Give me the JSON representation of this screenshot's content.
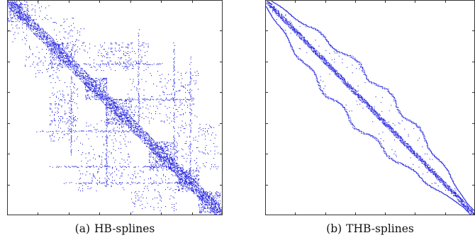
{
  "figure": {
    "panels": [
      {
        "tag": "(a)",
        "caption": "HB-splines"
      },
      {
        "tag": "(b)",
        "caption": "THB-splines"
      }
    ]
  },
  "colors": {
    "nonzero": "#2a2ae0",
    "axes": "#333333"
  },
  "chart_data": [
    {
      "type": "heatmap",
      "description_kind": "sparsity pattern",
      "x": [],
      "y": [],
      "grid": false,
      "title": "",
      "xlabel": "",
      "ylabel": ""
    },
    {
      "type": "heatmap",
      "description_kind": "sparsity pattern",
      "x": [],
      "y": [],
      "grid": false,
      "title": "",
      "xlabel": "",
      "ylabel": ""
    }
  ]
}
